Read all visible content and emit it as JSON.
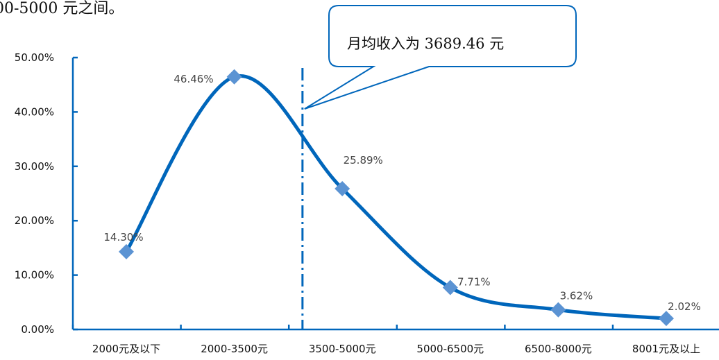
{
  "intro_text": "00-5000 元之间。",
  "callout": {
    "text": "月均收入为 3689.46 元"
  },
  "colors": {
    "line": "#0066bb",
    "marker": "#5b93d3",
    "axis": "#0066bb",
    "label": "#444444"
  },
  "chart_data": {
    "type": "line",
    "smooth": true,
    "categories": [
      "2000元及以下",
      "2000-3500元",
      "3500-5000元",
      "5000-6500元",
      "6500-8000元",
      "8001元及以上"
    ],
    "series": [
      {
        "values": [
          14.3,
          46.46,
          25.89,
          7.71,
          3.62,
          2.02
        ]
      }
    ],
    "data_labels": [
      "14.30%",
      "46.46%",
      "25.89%",
      "7.71%",
      "3.62%",
      "2.02%"
    ],
    "yticks": [
      "0.00%",
      "10.00%",
      "20.00%",
      "30.00%",
      "40.00%",
      "50.00%"
    ],
    "ylim": [
      0,
      50
    ],
    "mean_value": 3689.46,
    "grid": false,
    "legend": "none"
  }
}
